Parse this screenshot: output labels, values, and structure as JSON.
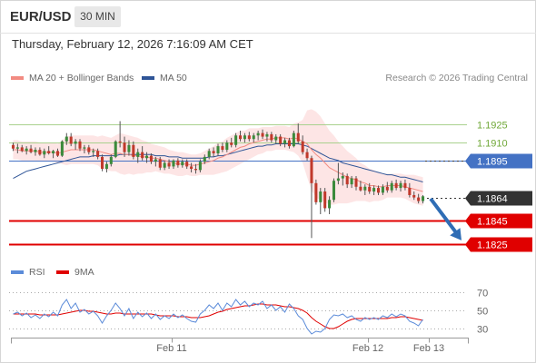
{
  "header": {
    "symbol": "EUR/USD",
    "timeframe": "30 MIN",
    "datetime": "Thursday, February 12, 2026 7:16:09 AM CET"
  },
  "legend": {
    "ma20": "MA 20 + Bollinger Bands",
    "ma50": "MA 50",
    "copyright": "Research © 2026 Trading Central"
  },
  "rsi_legend": {
    "rsi": "RSI",
    "ma9": "9MA"
  },
  "colors": {
    "ma20": "#f28b82",
    "ma50": "#2f5597",
    "bollinger_fill": "#fde0e0",
    "resistance": "#a9d18e",
    "resistance_text": "#70a838",
    "pivot": "#4472c4",
    "support": "#e00000",
    "current": "#333333",
    "arrow": "#2f6db5",
    "candle_up": "#3b8a3b",
    "candle_down": "#c0392b",
    "rsi": "#5b8bd9",
    "rsi_ma": "#e00000"
  },
  "chart_data": [
    {
      "type": "candlestick",
      "instrument": "EUR/USD",
      "timeframe": "30 MIN",
      "x_ticks": [
        "Feb 11",
        "Feb 12",
        "Feb 13"
      ],
      "levels": [
        {
          "value": 1.1925,
          "kind": "resistance",
          "label": "1.1925"
        },
        {
          "value": 1.191,
          "kind": "resistance",
          "label": "1.1910"
        },
        {
          "value": 1.1895,
          "kind": "pivot",
          "label": "1.1895"
        },
        {
          "value": 1.1864,
          "kind": "current",
          "label": "1.1864"
        },
        {
          "value": 1.1845,
          "kind": "support",
          "label": "1.1845"
        },
        {
          "value": 1.1825,
          "kind": "support",
          "label": "1.1825"
        }
      ],
      "ylim": [
        1.1815,
        1.1955
      ],
      "forecast_arrow": {
        "from": 1.1863,
        "to": 1.1828,
        "direction": "down"
      },
      "ohlc": [
        [
          1.1908,
          1.191,
          1.1903,
          1.1905
        ],
        [
          1.1905,
          1.1909,
          1.1901,
          1.1906
        ],
        [
          1.1906,
          1.1908,
          1.1902,
          1.1903
        ],
        [
          1.1903,
          1.1907,
          1.19,
          1.1905
        ],
        [
          1.1905,
          1.1908,
          1.1901,
          1.1902
        ],
        [
          1.1902,
          1.1906,
          1.1899,
          1.1904
        ],
        [
          1.1904,
          1.1906,
          1.1899,
          1.19
        ],
        [
          1.19,
          1.1905,
          1.1897,
          1.1903
        ],
        [
          1.1903,
          1.1907,
          1.19,
          1.1901
        ],
        [
          1.1901,
          1.1904,
          1.1897,
          1.1903
        ],
        [
          1.1903,
          1.1905,
          1.1898,
          1.1899
        ],
        [
          1.1899,
          1.1912,
          1.1898,
          1.1911
        ],
        [
          1.1911,
          1.1918,
          1.1908,
          1.1915
        ],
        [
          1.1915,
          1.1918,
          1.1907,
          1.1909
        ],
        [
          1.1909,
          1.1913,
          1.1904,
          1.1911
        ],
        [
          1.1911,
          1.1913,
          1.1903,
          1.1905
        ],
        [
          1.1905,
          1.1908,
          1.1901,
          1.1906
        ],
        [
          1.1906,
          1.1908,
          1.19,
          1.1902
        ],
        [
          1.1902,
          1.1905,
          1.1898,
          1.1903
        ],
        [
          1.1903,
          1.1905,
          1.1896,
          1.1898
        ],
        [
          1.1898,
          1.19,
          1.1886,
          1.1888
        ],
        [
          1.1888,
          1.1894,
          1.1885,
          1.1892
        ],
        [
          1.1892,
          1.19,
          1.189,
          1.1898
        ],
        [
          1.1898,
          1.1912,
          1.1897,
          1.1911
        ],
        [
          1.1911,
          1.1928,
          1.1906,
          1.191
        ],
        [
          1.191,
          1.1915,
          1.1898,
          1.1902
        ],
        [
          1.1902,
          1.1912,
          1.1899,
          1.1908
        ],
        [
          1.1908,
          1.1911,
          1.1896,
          1.1898
        ],
        [
          1.1898,
          1.1905,
          1.1893,
          1.1902
        ],
        [
          1.1902,
          1.1907,
          1.1895,
          1.1897
        ],
        [
          1.1897,
          1.1902,
          1.1893,
          1.1899
        ],
        [
          1.1899,
          1.1901,
          1.1892,
          1.1894
        ],
        [
          1.1894,
          1.1898,
          1.189,
          1.1896
        ],
        [
          1.1896,
          1.1898,
          1.1887,
          1.1889
        ],
        [
          1.1889,
          1.1895,
          1.1887,
          1.1893
        ],
        [
          1.1893,
          1.1896,
          1.1888,
          1.189
        ],
        [
          1.189,
          1.1896,
          1.1888,
          1.1895
        ],
        [
          1.1895,
          1.1897,
          1.1889,
          1.1891
        ],
        [
          1.1891,
          1.1896,
          1.1889,
          1.1894
        ],
        [
          1.1894,
          1.1896,
          1.1888,
          1.189
        ],
        [
          1.189,
          1.1893,
          1.1885,
          1.1888
        ],
        [
          1.1888,
          1.1892,
          1.1884,
          1.1887
        ],
        [
          1.1887,
          1.1896,
          1.1885,
          1.1894
        ],
        [
          1.1894,
          1.19,
          1.1892,
          1.1898
        ],
        [
          1.1898,
          1.1905,
          1.1896,
          1.1903
        ],
        [
          1.1903,
          1.1906,
          1.1898,
          1.1901
        ],
        [
          1.1901,
          1.1909,
          1.1899,
          1.1907
        ],
        [
          1.1907,
          1.191,
          1.1902,
          1.1904
        ],
        [
          1.1904,
          1.1912,
          1.1902,
          1.191
        ],
        [
          1.191,
          1.1914,
          1.1906,
          1.1908
        ],
        [
          1.1908,
          1.1918,
          1.1906,
          1.1916
        ],
        [
          1.1916,
          1.192,
          1.1911,
          1.1913
        ],
        [
          1.1913,
          1.1918,
          1.191,
          1.1916
        ],
        [
          1.1916,
          1.1919,
          1.1911,
          1.1913
        ],
        [
          1.1913,
          1.1918,
          1.191,
          1.1916
        ],
        [
          1.1916,
          1.192,
          1.1912,
          1.1918
        ],
        [
          1.1918,
          1.1921,
          1.1913,
          1.1915
        ],
        [
          1.1915,
          1.1919,
          1.1911,
          1.1917
        ],
        [
          1.1917,
          1.1919,
          1.191,
          1.1912
        ],
        [
          1.1912,
          1.1917,
          1.1909,
          1.1915
        ],
        [
          1.1915,
          1.1917,
          1.1907,
          1.1909
        ],
        [
          1.1909,
          1.1914,
          1.1906,
          1.1912
        ],
        [
          1.1912,
          1.1914,
          1.1905,
          1.1907
        ],
        [
          1.1907,
          1.192,
          1.1906,
          1.1918
        ],
        [
          1.1918,
          1.1926,
          1.1909,
          1.1911
        ],
        [
          1.1911,
          1.1916,
          1.19,
          1.1902
        ],
        [
          1.1902,
          1.1905,
          1.1895,
          1.1897
        ],
        [
          1.1897,
          1.1899,
          1.183,
          1.1876
        ],
        [
          1.1876,
          1.1879,
          1.1858,
          1.186
        ],
        [
          1.186,
          1.1872,
          1.185,
          1.1869
        ],
        [
          1.1869,
          1.1872,
          1.1852,
          1.1855
        ],
        [
          1.1855,
          1.1865,
          1.185,
          1.1862
        ],
        [
          1.1862,
          1.188,
          1.186,
          1.1878
        ],
        [
          1.1878,
          1.1893,
          1.1875,
          1.188
        ],
        [
          1.188,
          1.1885,
          1.1874,
          1.1882
        ],
        [
          1.1882,
          1.1884,
          1.1872,
          1.1875
        ],
        [
          1.1875,
          1.1882,
          1.1872,
          1.188
        ],
        [
          1.188,
          1.1882,
          1.187,
          1.1873
        ],
        [
          1.1873,
          1.1878,
          1.1869,
          1.187
        ],
        [
          1.187,
          1.1875,
          1.1866,
          1.1873
        ],
        [
          1.1873,
          1.1876,
          1.1867,
          1.1869
        ],
        [
          1.1869,
          1.1874,
          1.1866,
          1.1872
        ],
        [
          1.1872,
          1.1874,
          1.1866,
          1.1868
        ],
        [
          1.1868,
          1.1875,
          1.1866,
          1.1873
        ],
        [
          1.1873,
          1.1877,
          1.1868,
          1.187
        ],
        [
          1.187,
          1.1878,
          1.1868,
          1.1876
        ],
        [
          1.1876,
          1.1879,
          1.187,
          1.1872
        ],
        [
          1.1872,
          1.1878,
          1.1869,
          1.1876
        ],
        [
          1.1876,
          1.1879,
          1.187,
          1.1872
        ],
        [
          1.1872,
          1.1876,
          1.1864,
          1.1866
        ],
        [
          1.1866,
          1.1869,
          1.1862,
          1.1864
        ],
        [
          1.1864,
          1.1867,
          1.1859,
          1.1861
        ],
        [
          1.1861,
          1.1866,
          1.1859,
          1.1865
        ]
      ],
      "ma20": [
        1.1904,
        1.1904,
        1.1903,
        1.1903,
        1.1903,
        1.1903,
        1.1902,
        1.1902,
        1.1902,
        1.1902,
        1.1901,
        1.1902,
        1.1903,
        1.1904,
        1.1904,
        1.1904,
        1.1904,
        1.1904,
        1.1904,
        1.1903,
        1.1902,
        1.1901,
        1.19,
        1.1901,
        1.1901,
        1.19,
        1.19,
        1.1899,
        1.1899,
        1.1898,
        1.1898,
        1.1897,
        1.1897,
        1.1896,
        1.1895,
        1.1894,
        1.1893,
        1.1892,
        1.1892,
        1.1892,
        1.1891,
        1.1891,
        1.1892,
        1.1893,
        1.1894,
        1.1895,
        1.1897,
        1.1898,
        1.19,
        1.1902,
        1.1904,
        1.1906,
        1.1907,
        1.1909,
        1.191,
        1.1911,
        1.1912,
        1.1913,
        1.1913,
        1.1914,
        1.1914,
        1.1914,
        1.1913,
        1.1914,
        1.1913,
        1.1911,
        1.1909,
        1.1904,
        1.19,
        1.1897,
        1.1893,
        1.1889,
        1.1887,
        1.1885,
        1.1883,
        1.1881,
        1.188,
        1.1879,
        1.1877,
        1.1876,
        1.1874,
        1.1874,
        1.1873,
        1.1873,
        1.1874,
        1.1874,
        1.1874,
        1.1874,
        1.1873,
        1.1872,
        1.1871,
        1.187,
        1.1869
      ],
      "ma50": [
        1.188,
        1.1882,
        1.1884,
        1.1886,
        1.1887,
        1.1888,
        1.1889,
        1.189,
        1.1891,
        1.1892,
        1.1893,
        1.1894,
        1.1895,
        1.1896,
        1.1897,
        1.1898,
        1.1898,
        1.1898,
        1.1899,
        1.1899,
        1.1899,
        1.1899,
        1.1899,
        1.1899,
        1.19,
        1.19,
        1.19,
        1.19,
        1.19,
        1.19,
        1.19,
        1.19,
        1.1899,
        1.1899,
        1.1899,
        1.1898,
        1.1898,
        1.1898,
        1.1897,
        1.1897,
        1.1897,
        1.1897,
        1.1897,
        1.1897,
        1.1898,
        1.1898,
        1.1899,
        1.1899,
        1.19,
        1.1901,
        1.1902,
        1.1903,
        1.1904,
        1.1905,
        1.1906,
        1.1907,
        1.1907,
        1.1908,
        1.1908,
        1.1909,
        1.1909,
        1.1909,
        1.1909,
        1.1909,
        1.1909,
        1.1908,
        1.1907,
        1.1905,
        1.1903,
        1.1901,
        1.1899,
        1.1897,
        1.1896,
        1.1895,
        1.1893,
        1.1892,
        1.1891,
        1.189,
        1.1889,
        1.1888,
        1.1887,
        1.1886,
        1.1885,
        1.1884,
        1.1883,
        1.1883,
        1.1882,
        1.1881,
        1.1881,
        1.188,
        1.1879,
        1.1878,
        1.1877
      ],
      "bb_width": [
        0.0008,
        0.0008,
        0.0008,
        0.0008,
        0.0008,
        0.0008,
        0.0008,
        0.0008,
        0.0008,
        0.0008,
        0.0008,
        0.001,
        0.0012,
        0.0012,
        0.0012,
        0.0012,
        0.0012,
        0.0012,
        0.0012,
        0.0012,
        0.0014,
        0.0014,
        0.0014,
        0.0015,
        0.0017,
        0.0017,
        0.0016,
        0.0016,
        0.0015,
        0.0014,
        0.0013,
        0.0012,
        0.0011,
        0.0011,
        0.0011,
        0.001,
        0.001,
        0.001,
        0.001,
        0.0009,
        0.0009,
        0.0009,
        0.0009,
        0.001,
        0.0011,
        0.0012,
        0.0013,
        0.0013,
        0.0014,
        0.0014,
        0.0014,
        0.0014,
        0.0013,
        0.0013,
        0.0012,
        0.0011,
        0.0011,
        0.001,
        0.001,
        0.001,
        0.001,
        0.001,
        0.001,
        0.0012,
        0.0014,
        0.0018,
        0.0028,
        0.0034,
        0.0036,
        0.0035,
        0.0033,
        0.0031,
        0.0029,
        0.0026,
        0.0024,
        0.0022,
        0.002,
        0.0018,
        0.0016,
        0.0015,
        0.0014,
        0.0013,
        0.0012,
        0.0011,
        0.001,
        0.001,
        0.001,
        0.001,
        0.001,
        0.0011,
        0.0012,
        0.0012,
        0.0012
      ]
    },
    {
      "type": "line",
      "indicator": "RSI",
      "series": [
        {
          "name": "RSI",
          "values": [
            46,
            48,
            44,
            47,
            42,
            45,
            41,
            46,
            43,
            48,
            44,
            56,
            62,
            52,
            58,
            48,
            51,
            46,
            49,
            44,
            36,
            44,
            50,
            58,
            52,
            44,
            52,
            41,
            48,
            43,
            47,
            41,
            46,
            40,
            44,
            41,
            46,
            42,
            45,
            41,
            38,
            37,
            46,
            50,
            56,
            52,
            58,
            50,
            58,
            54,
            62,
            56,
            60,
            54,
            58,
            56,
            60,
            52,
            56,
            50,
            54,
            48,
            57,
            52,
            44,
            40,
            30,
            24,
            27,
            26,
            30,
            40,
            45,
            44,
            46,
            42,
            44,
            40,
            38,
            42,
            40,
            42,
            40,
            44,
            42,
            46,
            43,
            46,
            44,
            38,
            36,
            33,
            40
          ]
        },
        {
          "name": "9MA",
          "values": [
            46,
            46,
            46,
            46,
            46,
            46,
            45,
            45,
            45,
            45,
            45,
            46,
            47,
            48,
            49,
            50,
            50,
            49,
            49,
            48,
            47,
            46,
            46,
            47,
            47,
            46,
            46,
            46,
            46,
            46,
            46,
            46,
            45,
            44,
            44,
            44,
            44,
            43,
            43,
            43,
            42,
            42,
            42,
            43,
            44,
            46,
            48,
            49,
            51,
            52,
            53,
            54,
            55,
            55,
            56,
            57,
            57,
            56,
            56,
            56,
            55,
            54,
            54,
            53,
            52,
            50,
            47,
            42,
            38,
            35,
            32,
            30,
            30,
            32,
            35,
            38,
            40,
            41,
            41,
            41,
            41,
            41,
            41,
            41,
            41,
            42,
            42,
            43,
            43,
            42,
            41,
            40,
            39
          ]
        }
      ],
      "ylim": [
        20,
        80
      ],
      "y_ticks": [
        70,
        50,
        30
      ]
    }
  ]
}
